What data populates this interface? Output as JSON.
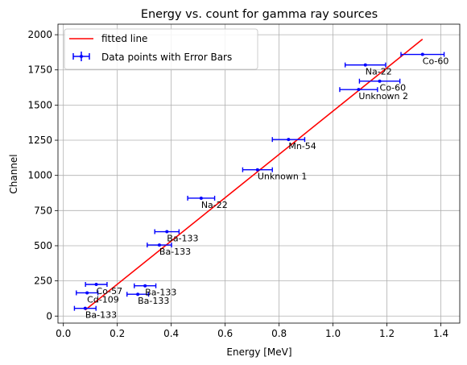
{
  "chart_data": {
    "type": "scatter",
    "title": "Energy vs. count for gamma ray sources",
    "xlabel": "Energy [MeV]",
    "ylabel": "Channel",
    "xlim": [
      -0.02,
      1.47
    ],
    "ylim": [
      -50,
      2075
    ],
    "xticks": [
      0.0,
      0.2,
      0.4,
      0.6,
      0.8,
      1.0,
      1.2,
      1.4
    ],
    "xtick_labels": [
      "0.0",
      "0.2",
      "0.4",
      "0.6",
      "0.8",
      "1.0",
      "1.2",
      "1.4"
    ],
    "yticks": [
      0,
      250,
      500,
      750,
      1000,
      1250,
      1500,
      1750,
      2000
    ],
    "ytick_labels": [
      "0",
      "250",
      "500",
      "750",
      "1000",
      "1250",
      "1500",
      "1750",
      "2000"
    ],
    "grid": true,
    "legend_position": "upper left",
    "colors": {
      "fit": "#ff0000",
      "points": "#0000ff"
    },
    "fit_line": {
      "name": "fitted line",
      "x": [
        0.081,
        1.332
      ],
      "y": [
        43,
        1968
      ]
    },
    "points_series": {
      "name": "Data points with Error Bars",
      "points": [
        {
          "x": 0.081,
          "y": 55,
          "xerr": 0.04,
          "label": "Ba-133"
        },
        {
          "x": 0.088,
          "y": 165,
          "xerr": 0.04,
          "label": "Cd-109"
        },
        {
          "x": 0.122,
          "y": 225,
          "xerr": 0.04,
          "label": "Co-57"
        },
        {
          "x": 0.276,
          "y": 155,
          "xerr": 0.04,
          "label": "Ba-133"
        },
        {
          "x": 0.303,
          "y": 215,
          "xerr": 0.04,
          "label": "Ba-133"
        },
        {
          "x": 0.356,
          "y": 505,
          "xerr": 0.045,
          "label": "Ba-133"
        },
        {
          "x": 0.384,
          "y": 600,
          "xerr": 0.045,
          "label": "Ba-133"
        },
        {
          "x": 0.511,
          "y": 838,
          "xerr": 0.05,
          "label": "Na-22"
        },
        {
          "x": 0.72,
          "y": 1040,
          "xerr": 0.055,
          "label": "Unknown 1"
        },
        {
          "x": 0.835,
          "y": 1255,
          "xerr": 0.06,
          "label": "Mn-54"
        },
        {
          "x": 1.095,
          "y": 1610,
          "xerr": 0.07,
          "label": "Unknown 2"
        },
        {
          "x": 1.173,
          "y": 1670,
          "xerr": 0.075,
          "label": "Co-60"
        },
        {
          "x": 1.12,
          "y": 1785,
          "xerr": 0.075,
          "label": "Na-22"
        },
        {
          "x": 1.332,
          "y": 1860,
          "xerr": 0.08,
          "label": "Co-60"
        }
      ]
    }
  }
}
